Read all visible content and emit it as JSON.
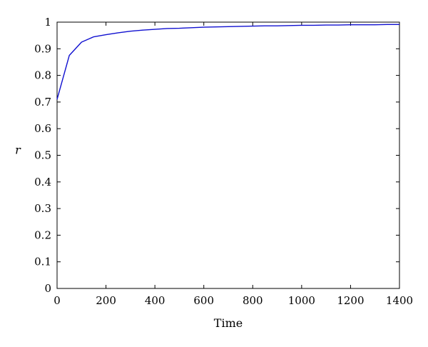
{
  "chart_data": {
    "type": "line",
    "title": "",
    "xlabel": "Time",
    "ylabel": "r",
    "xlim": [
      0,
      1400
    ],
    "ylim": [
      0,
      1
    ],
    "grid": false,
    "x_ticks": [
      "0",
      "200",
      "400",
      "600",
      "800",
      "1000",
      "1200",
      "1400"
    ],
    "y_ticks": [
      "0",
      "0.1",
      "0.2",
      "0.3",
      "0.4",
      "0.5",
      "0.6",
      "0.7",
      "0.8",
      "0.9",
      "1"
    ],
    "series": [
      {
        "color": "#1010d0",
        "x": [
          0,
          50,
          100,
          150,
          200,
          250,
          300,
          350,
          400,
          450,
          500,
          550,
          600,
          650,
          700,
          750,
          800,
          850,
          900,
          950,
          1000,
          1050,
          1100,
          1150,
          1200,
          1250,
          1300,
          1350,
          1400
        ],
        "y": [
          0.71,
          0.875,
          0.925,
          0.945,
          0.953,
          0.96,
          0.966,
          0.97,
          0.973,
          0.976,
          0.977,
          0.979,
          0.981,
          0.982,
          0.983,
          0.984,
          0.985,
          0.986,
          0.986,
          0.987,
          0.988,
          0.988,
          0.989,
          0.989,
          0.99,
          0.99,
          0.99,
          0.991,
          0.991
        ]
      }
    ]
  }
}
